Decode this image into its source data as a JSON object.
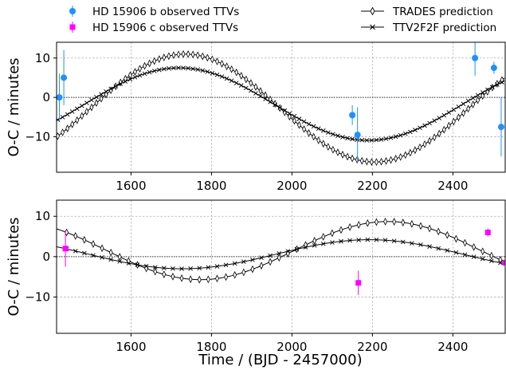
{
  "legend": {
    "b_obs": "HD 15906 b observed TTVs",
    "c_obs": "HD 15906 c observed TTVs",
    "trades": "TRADES prediction",
    "ttv2f": "TTV2F2F prediction"
  },
  "colors": {
    "b_obs": "#1e90ff",
    "c_obs": "#ff00ff",
    "model": "#000000",
    "grid": "#b0b0b0"
  },
  "chart_data": [
    {
      "type": "scatter",
      "panel": "top",
      "xlabel": "",
      "ylabel": "O-C / minutes",
      "xlim": [
        1415,
        2530
      ],
      "ylim": [
        -19,
        14
      ],
      "xticks": [
        1600,
        1800,
        2000,
        2200,
        2400
      ],
      "yticks": [
        10,
        0,
        -10
      ],
      "ytick_labels": [
        "10",
        "0",
        "−10"
      ],
      "grid": true,
      "zero_line": true,
      "observed": {
        "name": "HD 15906 b observed TTVs",
        "points": [
          {
            "x": 1422,
            "y": 0.0,
            "err": 6.0
          },
          {
            "x": 1433,
            "y": 5.0,
            "err": 7.0
          },
          {
            "x": 2150,
            "y": -4.5,
            "err": 2.5
          },
          {
            "x": 2163,
            "y": -9.5,
            "err": 7.0
          },
          {
            "x": 2455,
            "y": 10.0,
            "err": 4.5
          },
          {
            "x": 2502,
            "y": 7.5,
            "err": 1.5
          },
          {
            "x": 2520,
            "y": -7.5,
            "err": 7.5
          }
        ]
      },
      "models": [
        {
          "name": "TRADES prediction",
          "marker": "thin_diamond",
          "mean": -2.7,
          "amp": 13.7,
          "period": 940,
          "phase_x": 1500,
          "start": 1418,
          "step": 12,
          "end": 2530
        },
        {
          "name": "TTV2F2F prediction",
          "marker": "x",
          "mean": -1.7,
          "amp": 9.2,
          "period": 940,
          "phase_x": 1485,
          "start": 1418,
          "step": 12,
          "end": 2530
        }
      ]
    },
    {
      "type": "scatter",
      "panel": "bottom",
      "xlabel": "Time / (BJD - 2457000)",
      "ylabel": "O-C / minutes",
      "xlim": [
        1415,
        2530
      ],
      "ylim": [
        -19,
        14
      ],
      "xticks": [
        1600,
        1800,
        2000,
        2200,
        2400
      ],
      "yticks": [
        10,
        0,
        -10
      ],
      "ytick_labels": [
        "10",
        "0",
        "−10"
      ],
      "grid": true,
      "zero_line": true,
      "observed": {
        "name": "HD 15906 c observed TTVs",
        "points": [
          {
            "x": 1437,
            "y": 2.0,
            "err": 4.5
          },
          {
            "x": 2165,
            "y": -6.5,
            "err": 3.0
          },
          {
            "x": 2487,
            "y": 6.0,
            "err": 1.0
          },
          {
            "x": 2530,
            "y": -1.5,
            "err": 1.0
          }
        ]
      },
      "models": [
        {
          "name": "TRADES prediction",
          "marker": "thin_diamond",
          "mean": 1.5,
          "amp": 7.2,
          "period": 930,
          "phase_x": 2005,
          "start": 1440,
          "step": 22,
          "end": 2530
        },
        {
          "name": "TTV2F2F prediction",
          "marker": "x",
          "mean": 0.6,
          "amp": 3.6,
          "period": 930,
          "phase_x": 1960,
          "start": 1440,
          "step": 22,
          "end": 2530
        }
      ]
    }
  ]
}
